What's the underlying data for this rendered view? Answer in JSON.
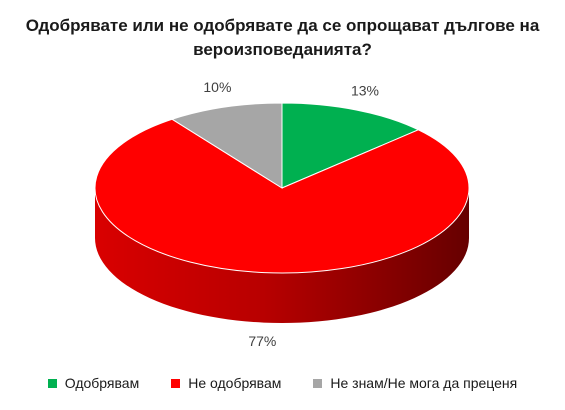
{
  "chart_data": {
    "type": "pie",
    "title_lines": [
      "Одобрявате или не одобрявате да се опрощават дългове на",
      "вероизповеданията?"
    ],
    "slices": [
      {
        "label": "Одобрявам",
        "value": 13,
        "value_label": "13%",
        "color": "#00b050"
      },
      {
        "label": "Не одобрявам",
        "value": 77,
        "value_label": "77%",
        "color": "#ff0000"
      },
      {
        "label": "Не знам/Не мога да преценя",
        "value": 10,
        "value_label": "10%",
        "color": "#a6a6a6"
      }
    ],
    "legend_position": "bottom",
    "style": "3d"
  }
}
